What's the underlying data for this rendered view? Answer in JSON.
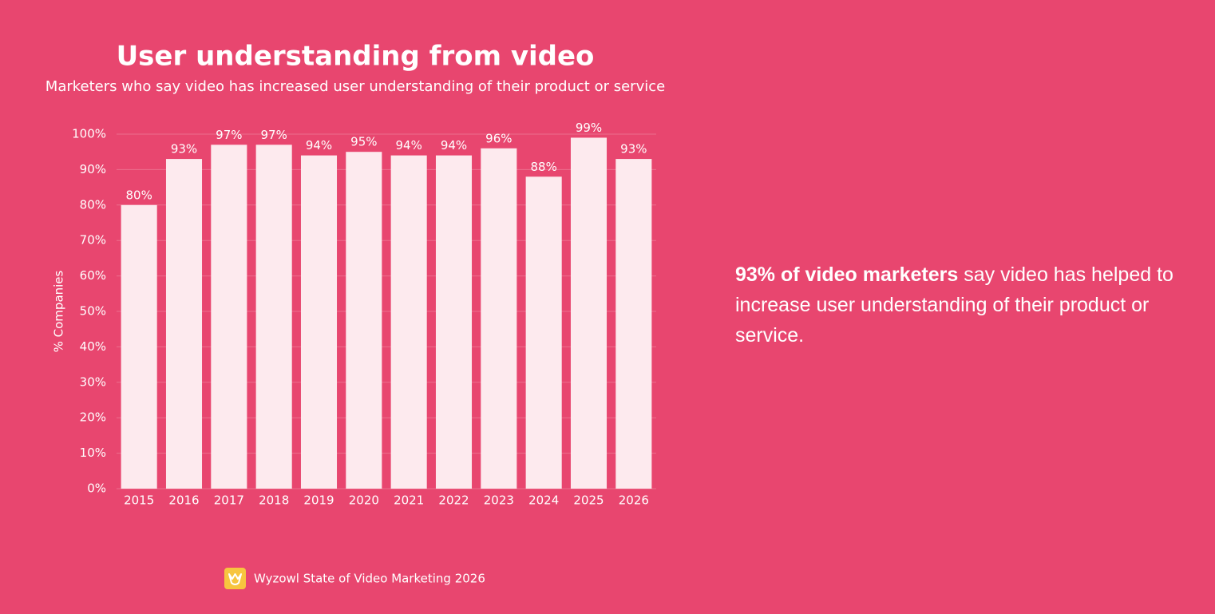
{
  "chart_data": {
    "type": "bar",
    "title": "User understanding from video",
    "subtitle": "Marketers who say video has increased user understanding of their product or service",
    "y_label": "% Companies",
    "categories": [
      "2015",
      "2016",
      "2017",
      "2018",
      "2019",
      "2020",
      "2021",
      "2022",
      "2023",
      "2024",
      "2025",
      "2026"
    ],
    "values": [
      80,
      93,
      97,
      97,
      94,
      95,
      94,
      94,
      96,
      88,
      99,
      93
    ],
    "value_labels": [
      "80%",
      "93%",
      "97%",
      "97%",
      "94%",
      "95%",
      "94%",
      "94%",
      "96%",
      "88%",
      "99%",
      "93%"
    ],
    "color": "#fdeaee",
    "ylim": [
      0,
      100
    ],
    "yticks": [
      {
        "value": 0,
        "label": "0%"
      },
      {
        "value": 10,
        "label": "10%"
      },
      {
        "value": 20,
        "label": "20%"
      },
      {
        "value": 30,
        "label": "30%"
      },
      {
        "value": 40,
        "label": "40%"
      },
      {
        "value": 50,
        "label": "50%"
      },
      {
        "value": 60,
        "label": "60%"
      },
      {
        "value": 70,
        "label": "70%"
      },
      {
        "value": 80,
        "label": "80%"
      },
      {
        "value": 90,
        "label": "90%"
      },
      {
        "value": 100,
        "label": "100%"
      }
    ],
    "grid": true,
    "source": "Wyzowl State of Video Marketing 2026"
  },
  "callout": {
    "highlight": "93% of video marketers",
    "text": " say video has helped to increase user understanding of their product or service."
  }
}
